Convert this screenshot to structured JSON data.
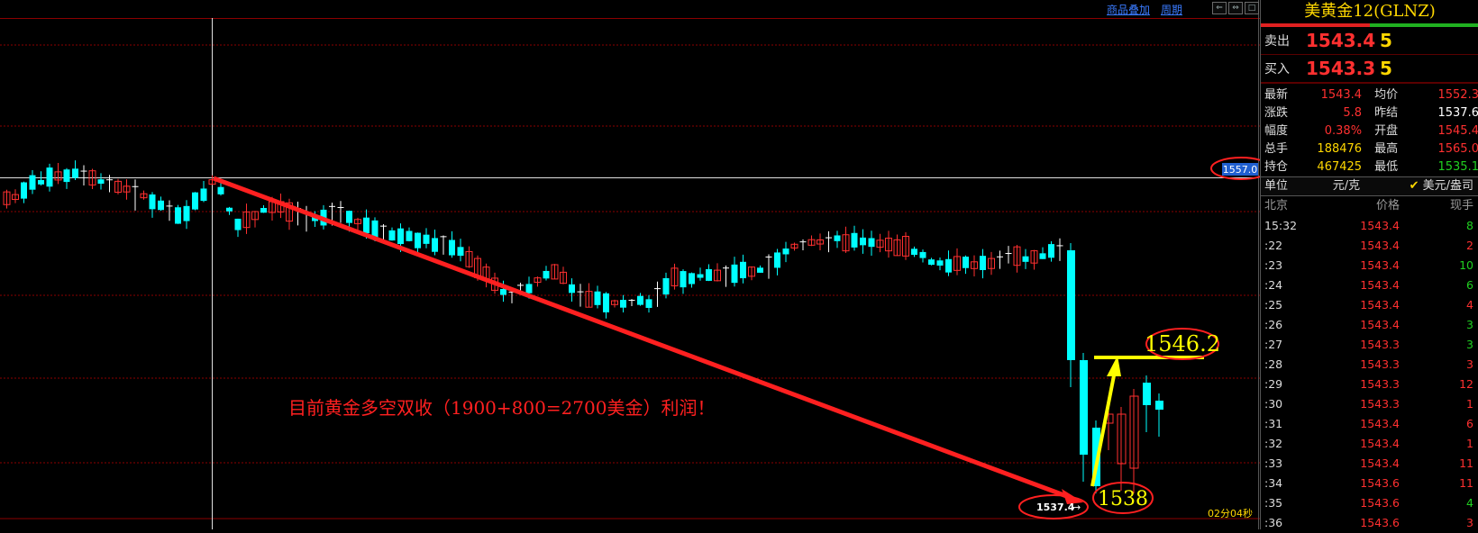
{
  "toolbar": {
    "overlay_label": "商品叠加",
    "period_label": "周期"
  },
  "chart": {
    "annotation_text": "目前黄金多空双收（1900+800=2700美金）利润！",
    "cursor_price_tag": "1557.0",
    "low_price_tag": "1537.4",
    "circle_low_label": "1538",
    "circle_high_label": "1546.2",
    "countdown": "02分04秒",
    "colors": {
      "up": "#ff3030",
      "down": "#00ffff",
      "flat": "#ffffff",
      "grid": "#8b0000",
      "arrow_red": "#ff2020",
      "arrow_yellow": "#ffff00",
      "circle": "#ff2020"
    }
  },
  "panel": {
    "title": "美黄金12(GLNZ)",
    "ask": {
      "label": "卖出",
      "price": "1543.4",
      "volume": "5"
    },
    "bid": {
      "label": "买入",
      "price": "1543.3",
      "volume": "5"
    },
    "stats": [
      {
        "k": "最新",
        "v": "1543.4",
        "vc": "#ff3030",
        "k2": "均价",
        "v2": "1552.3",
        "v2c": "#ff3030"
      },
      {
        "k": "涨跌",
        "v": "5.8",
        "vc": "#ff3030",
        "k2": "昨结",
        "v2": "1537.6",
        "v2c": "#ffffff"
      },
      {
        "k": "幅度",
        "v": "0.38%",
        "vc": "#ff3030",
        "k2": "开盘",
        "v2": "1545.4",
        "v2c": "#ff3030"
      },
      {
        "k": "总手",
        "v": "188476",
        "vc": "#ffd700",
        "k2": "最高",
        "v2": "1565.0",
        "v2c": "#ff3030"
      },
      {
        "k": "持仓",
        "v": "467425",
        "vc": "#ffd700",
        "k2": "最低",
        "v2": "1535.1",
        "v2c": "#20d020"
      }
    ],
    "unit": {
      "label": "单位",
      "cny": "元/克",
      "usd": "美元/盎司",
      "check": "✔"
    },
    "ticks_header": {
      "time": "北京",
      "price": "价格",
      "vol": "现手"
    },
    "ticks": [
      {
        "t": "15:32",
        "p": "1543.4",
        "v": "8",
        "vc": "#20d020"
      },
      {
        "t": ":22",
        "p": "1543.4",
        "v": "2",
        "vc": "#ff3030"
      },
      {
        "t": ":23",
        "p": "1543.4",
        "v": "10",
        "vc": "#20d020"
      },
      {
        "t": ":24",
        "p": "1543.4",
        "v": "6",
        "vc": "#20d020"
      },
      {
        "t": ":25",
        "p": "1543.4",
        "v": "4",
        "vc": "#ff3030"
      },
      {
        "t": ":26",
        "p": "1543.4",
        "v": "3",
        "vc": "#20d020"
      },
      {
        "t": ":27",
        "p": "1543.3",
        "v": "3",
        "vc": "#20d020"
      },
      {
        "t": ":28",
        "p": "1543.3",
        "v": "3",
        "vc": "#ff3030"
      },
      {
        "t": ":29",
        "p": "1543.3",
        "v": "12",
        "vc": "#ff3030"
      },
      {
        "t": ":30",
        "p": "1543.3",
        "v": "1",
        "vc": "#ff3030"
      },
      {
        "t": ":31",
        "p": "1543.4",
        "v": "6",
        "vc": "#ff3030"
      },
      {
        "t": ":32",
        "p": "1543.4",
        "v": "1",
        "vc": "#ff3030"
      },
      {
        "t": ":33",
        "p": "1543.4",
        "v": "11",
        "vc": "#ff3030"
      },
      {
        "t": ":34",
        "p": "1543.6",
        "v": "11",
        "vc": "#ff3030"
      },
      {
        "t": ":35",
        "p": "1543.6",
        "v": "4",
        "vc": "#20d020"
      },
      {
        "t": ":36",
        "p": "1543.6",
        "v": "3",
        "vc": "#ff3030"
      }
    ]
  }
}
